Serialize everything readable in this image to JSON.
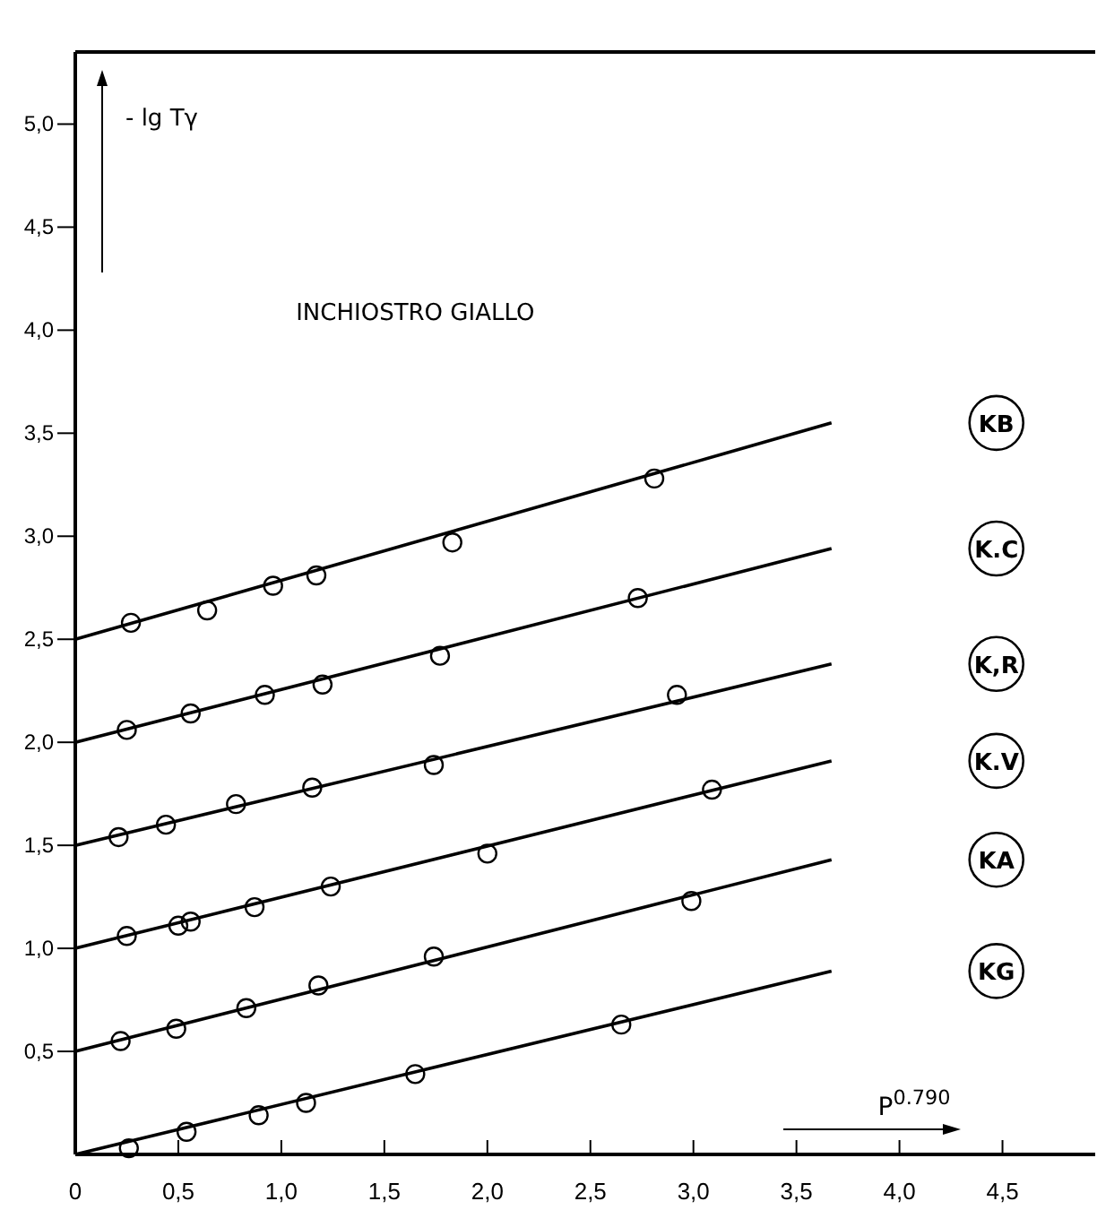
{
  "chart_data": {
    "type": "line",
    "title": "INCHIOSTRO GIALLO",
    "xlabel": "P$^{0.790}$",
    "ylabel": "- lg Tγ",
    "xlim": [
      0,
      4.95
    ],
    "ylim": [
      0,
      5.35
    ],
    "xticks": [
      0,
      {
        "value": 0.5,
        "label": "0,5"
      },
      {
        "value": 1,
        "label": "1,0"
      },
      {
        "value": 1.5,
        "label": "1,5"
      },
      {
        "value": 2,
        "label": "2,0"
      },
      {
        "value": 2.5,
        "label": "2,5"
      },
      {
        "value": 3,
        "label": "3,0"
      },
      {
        "value": 3.5,
        "label": "3,5"
      },
      {
        "value": 4,
        "label": "4,0"
      },
      {
        "value": 4.5,
        "label": "4,5"
      }
    ],
    "yticks": [
      {
        "value": 0.5,
        "label": "0,5"
      },
      {
        "value": 1,
        "label": "1,0"
      },
      {
        "value": 1.5,
        "label": "1,5"
      },
      {
        "value": 2,
        "label": "2,0"
      },
      {
        "value": 2.5,
        "label": "2,5"
      },
      {
        "value": 3,
        "label": "3,0"
      },
      {
        "value": 3.5,
        "label": "3,5"
      },
      {
        "value": 4,
        "label": "4,0"
      },
      {
        "value": 4.5,
        "label": "4,5"
      },
      {
        "value": 5,
        "label": "5,0"
      }
    ],
    "grid": false,
    "line_style": "solid",
    "series": [
      {
        "type": "line",
        "name": "KB",
        "color": "#000000",
        "marker": "none",
        "x": [
          0,
          3.67
        ],
        "values": [
          2.5,
          3.55
        ]
      },
      {
        "type": "scatter",
        "color": "#000000",
        "marker": "circle",
        "x": [
          0.27,
          0.64,
          0.96,
          1.17,
          1.83,
          2.81
        ],
        "values": [
          2.58,
          2.64,
          2.76,
          2.81,
          2.97,
          3.28
        ]
      },
      {
        "type": "line",
        "name": "K.C",
        "color": "#000000",
        "marker": "none",
        "x": [
          0,
          3.67
        ],
        "values": [
          2.0,
          2.94
        ]
      },
      {
        "type": "scatter",
        "color": "#000000",
        "marker": "circle",
        "x": [
          0.25,
          0.56,
          0.92,
          1.2,
          1.77,
          2.73
        ],
        "values": [
          2.06,
          2.14,
          2.23,
          2.28,
          2.42,
          2.7
        ]
      },
      {
        "type": "line",
        "name": "K,R",
        "color": "#000000",
        "marker": "none",
        "x": [
          0,
          3.67
        ],
        "values": [
          1.5,
          2.38
        ]
      },
      {
        "type": "scatter",
        "color": "#000000",
        "marker": "circle",
        "x": [
          0.21,
          0.44,
          0.78,
          1.15,
          1.74,
          2.92
        ],
        "values": [
          1.54,
          1.6,
          1.7,
          1.78,
          1.89,
          2.23
        ]
      },
      {
        "type": "line",
        "name": "K.V",
        "color": "#000000",
        "marker": "none",
        "x": [
          0,
          3.67
        ],
        "values": [
          1.0,
          1.91
        ]
      },
      {
        "type": "scatter",
        "color": "#000000",
        "marker": "circle",
        "x": [
          0.25,
          0.5,
          0.56,
          0.87,
          1.24,
          2.0,
          3.09
        ],
        "values": [
          1.06,
          1.11,
          1.13,
          1.2,
          1.3,
          1.46,
          1.77
        ]
      },
      {
        "type": "line",
        "name": "KA",
        "color": "#000000",
        "marker": "none",
        "x": [
          0,
          3.67
        ],
        "values": [
          0.5,
          1.43
        ]
      },
      {
        "type": "scatter",
        "color": "#000000",
        "marker": "circle",
        "x": [
          0.22,
          0.49,
          0.83,
          1.18,
          1.74,
          2.99
        ],
        "values": [
          0.55,
          0.61,
          0.71,
          0.82,
          0.96,
          1.23
        ]
      },
      {
        "type": "line",
        "name": "KG",
        "color": "#000000",
        "marker": "none",
        "x": [
          0,
          3.67
        ],
        "values": [
          0,
          0.89
        ]
      },
      {
        "type": "scatter",
        "color": "#000000",
        "marker": "circle",
        "x": [
          0.26,
          0.54,
          0.89,
          1.12,
          1.65,
          2.65
        ],
        "values": [
          0.03,
          0.11,
          0.19,
          0.25,
          0.39,
          0.63
        ]
      }
    ]
  }
}
